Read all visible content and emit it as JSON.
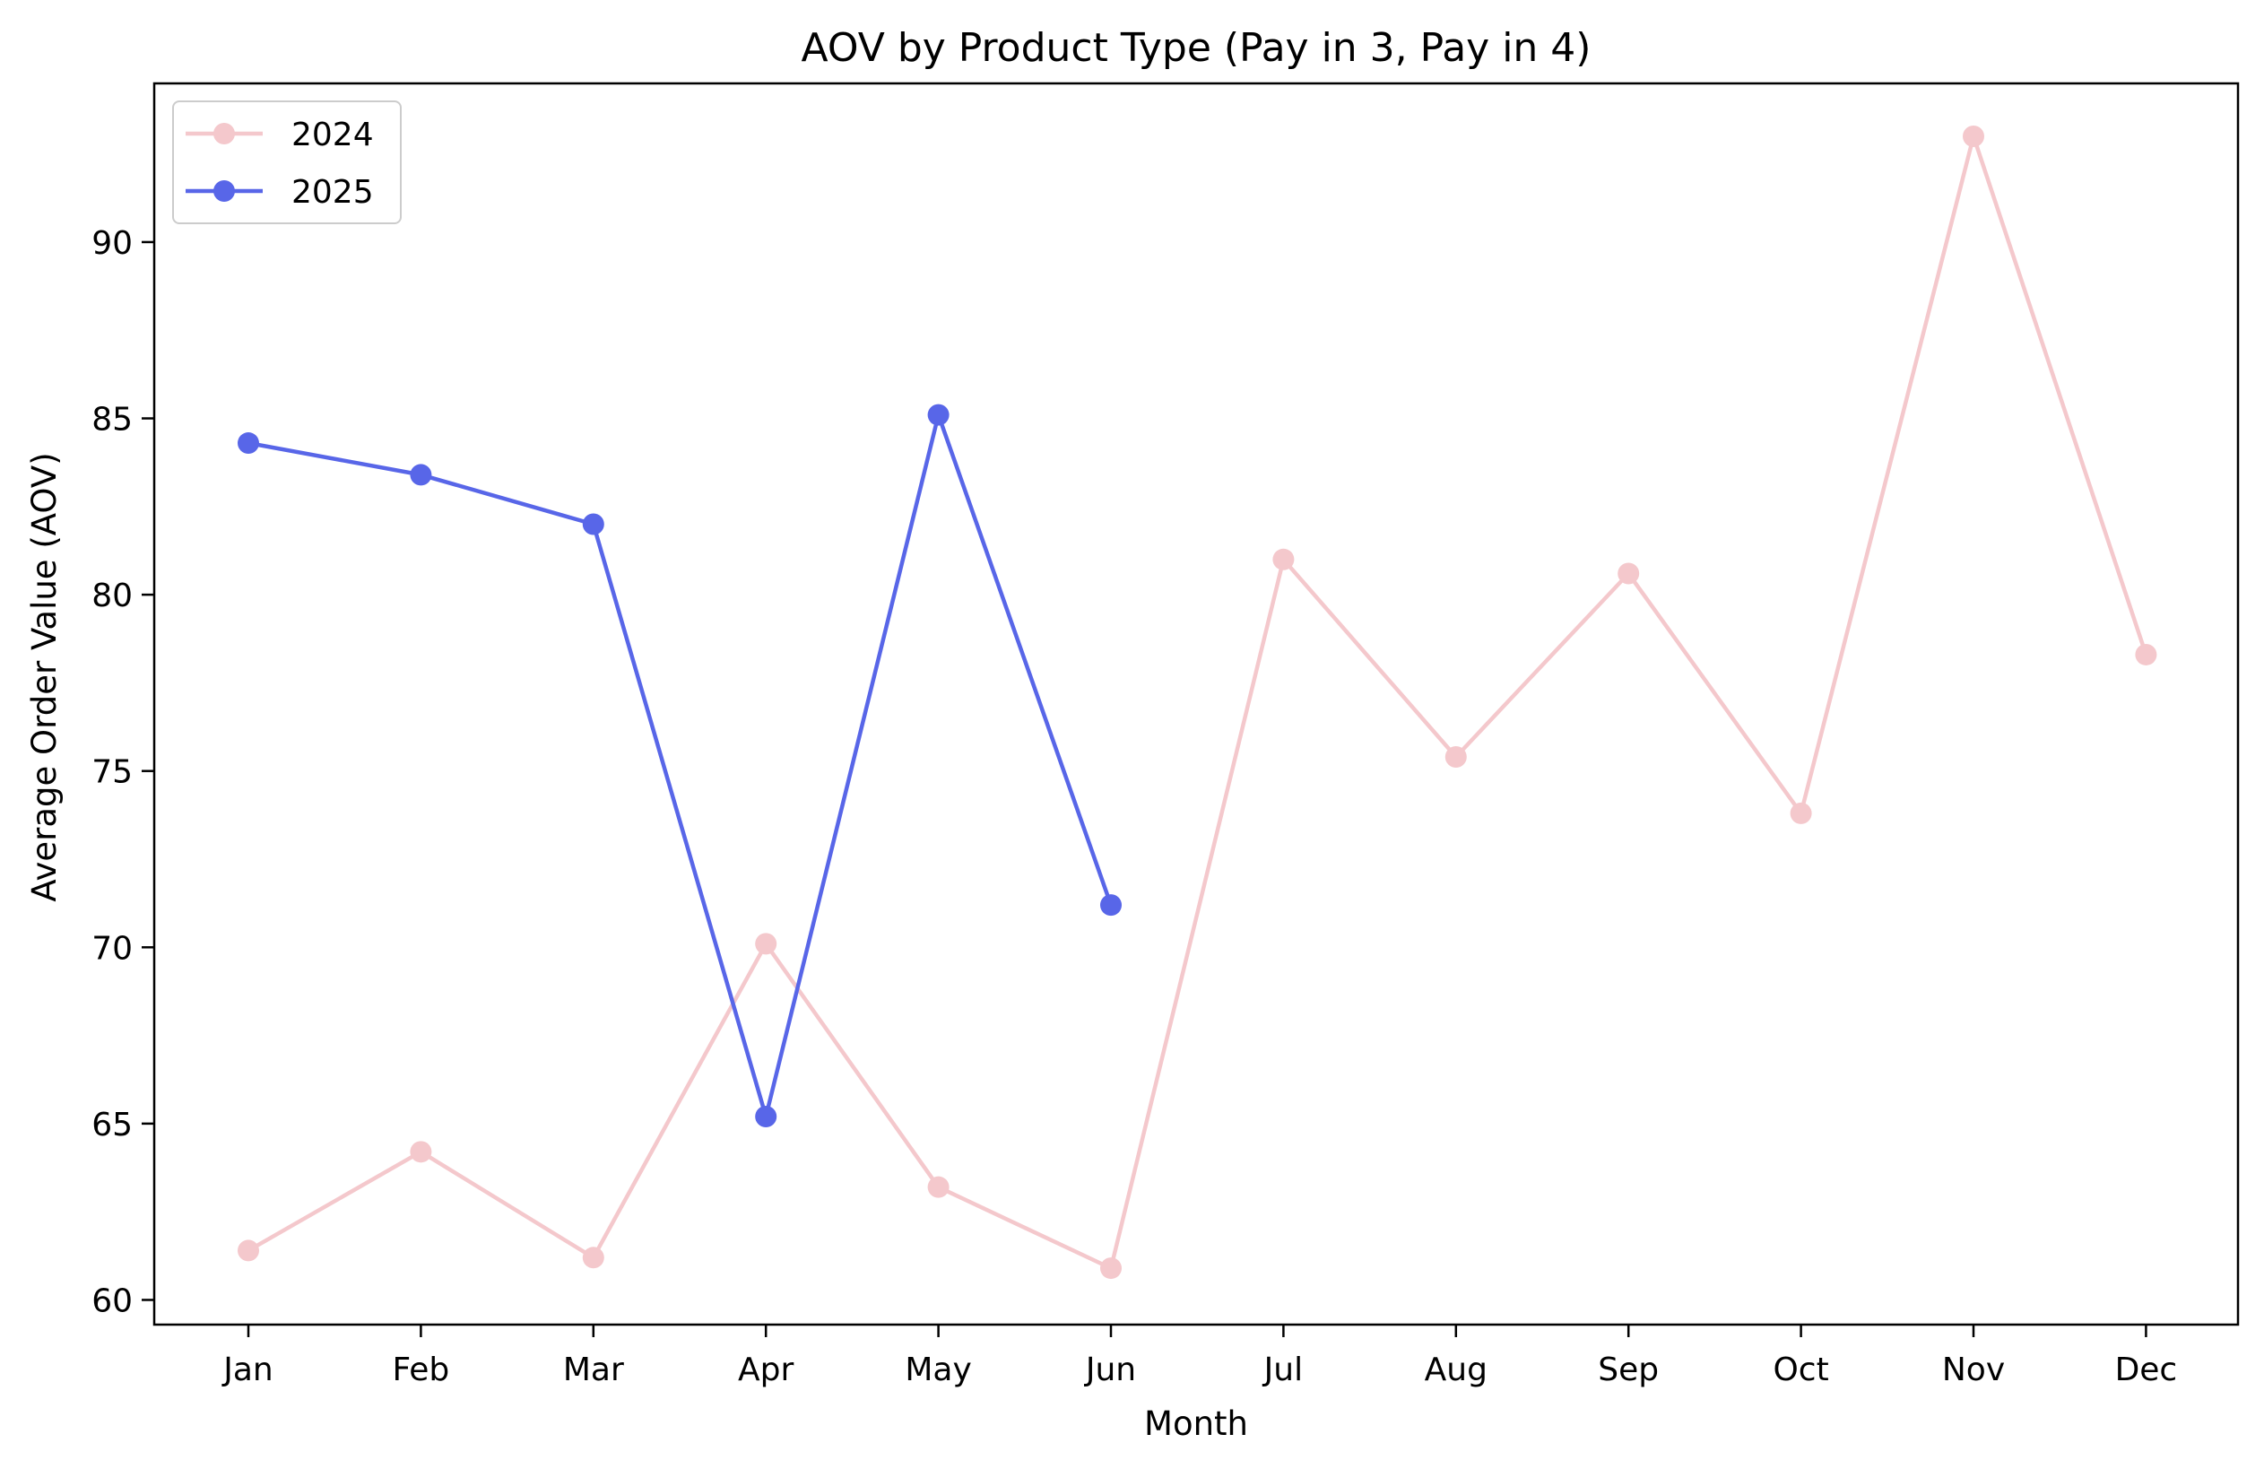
{
  "chart_data": {
    "type": "line",
    "title": "AOV by Product Type (Pay in 3, Pay in 4)",
    "xlabel": "Month",
    "ylabel": "Average Order Value (AOV)",
    "categories": [
      "Jan",
      "Feb",
      "Mar",
      "Apr",
      "May",
      "Jun",
      "Jul",
      "Aug",
      "Sep",
      "Oct",
      "Nov",
      "Dec"
    ],
    "ylim": [
      59.3,
      94.5
    ],
    "yticks": [
      60,
      65,
      70,
      75,
      80,
      85,
      90
    ],
    "grid": false,
    "legend_position": "top-left",
    "series": [
      {
        "name": "2024",
        "color": "#f4c8cc",
        "values": [
          61.4,
          64.2,
          61.2,
          70.1,
          63.2,
          60.9,
          81.0,
          75.4,
          80.6,
          73.8,
          93.0,
          78.3
        ]
      },
      {
        "name": "2025",
        "color": "#5866e8",
        "values": [
          84.3,
          83.4,
          82.0,
          65.2,
          85.1,
          71.2,
          null,
          null,
          null,
          null,
          null,
          null
        ]
      }
    ]
  }
}
